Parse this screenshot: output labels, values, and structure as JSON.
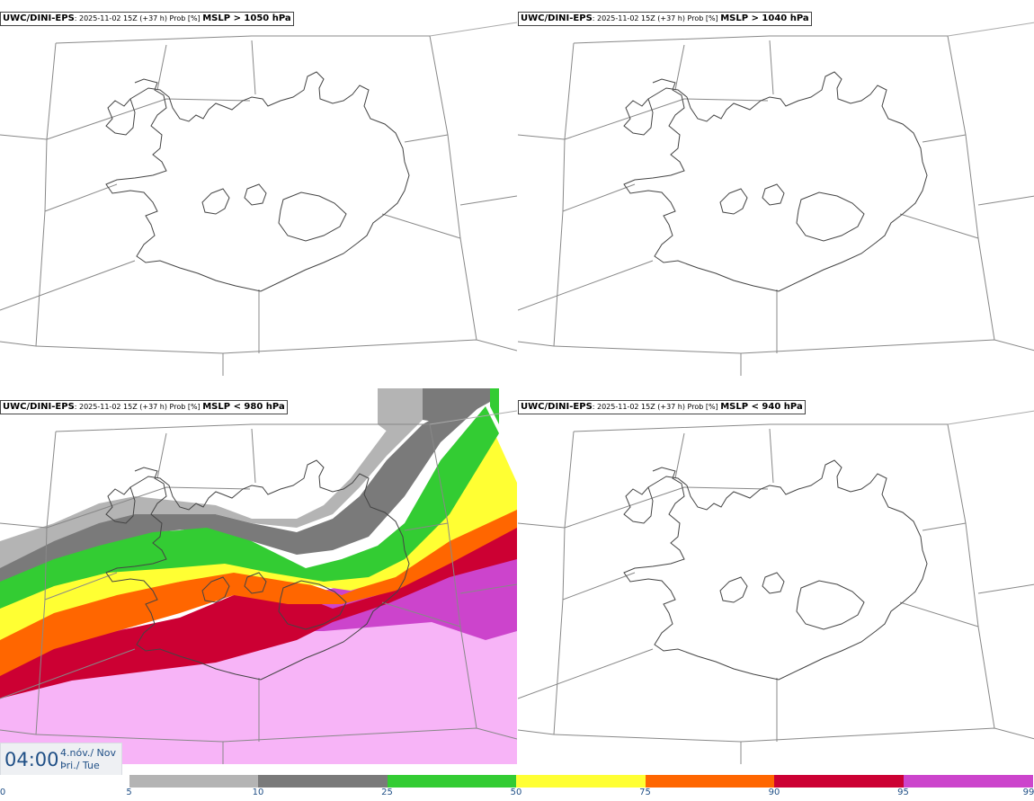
{
  "panels": [
    {
      "model": "UWC/DINI-EPS",
      "run": ": 2025-11-02 15Z (+37 h) Prob [%] ",
      "field": "MSLP > 1050 hPa"
    },
    {
      "model": "UWC/DINI-EPS",
      "run": ": 2025-11-02 15Z (+37 h) Prob [%] ",
      "field": "MSLP > 1040 hPa"
    },
    {
      "model": "UWC/DINI-EPS",
      "run": ": 2025-11-02 15Z (+37 h) Prob [%] ",
      "field": "MSLP < 980 hPa"
    },
    {
      "model": "UWC/DINI-EPS",
      "run": ": 2025-11-02 15Z (+37 h) Prob [%] ",
      "field": "MSLP < 940 hPa"
    }
  ],
  "time": {
    "clock": "04:00",
    "date_line1": "4.nóv./ Nov",
    "date_line2": "Þri./ Tue"
  },
  "legend": {
    "ticks": [
      "0",
      "5",
      "10",
      "25",
      "50",
      "75",
      "90",
      "95",
      "99"
    ],
    "colors": [
      "#ffffff",
      "#b4b4b4",
      "#7a7a7a",
      "#33cc33",
      "#ffff33",
      "#ff6600",
      "#cc0033",
      "#cc44cc",
      "#f7b4f7"
    ]
  }
}
